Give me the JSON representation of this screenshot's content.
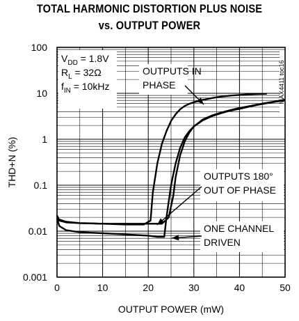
{
  "chart_data": {
    "type": "line",
    "title": "TOTAL HARMONIC DISTORTION PLUS NOISE",
    "subtitle": "vs. OUTPUT POWER",
    "xlabel": "OUTPUT POWER (mW)",
    "ylabel": "THD+N (%)",
    "xlim": [
      0,
      50
    ],
    "ylim": [
      0.001,
      100
    ],
    "yscale": "log",
    "grid": true,
    "x_ticks": [
      "0",
      "10",
      "20",
      "30",
      "40",
      "50"
    ],
    "y_ticks": [
      "0.001",
      "0.01",
      "0.1",
      "1",
      "10",
      "100"
    ],
    "conditions": [
      {
        "main": "V",
        "sub": "DD",
        "rest": " = 1.8V"
      },
      {
        "main": "R",
        "sub": "L",
        "rest": " = 32Ω"
      },
      {
        "main": "f",
        "sub": "IN",
        "rest": " = 10kHz"
      }
    ],
    "side_label": "MAX4411 toc16",
    "annotations": [
      {
        "lines": [
          "OUTPUTS IN",
          "PHASE"
        ]
      },
      {
        "lines": [
          "OUTPUTS 180°",
          "OUT OF PHASE"
        ]
      },
      {
        "lines": [
          "ONE CHANNEL",
          "DRIVEN"
        ]
      }
    ],
    "series": [
      {
        "x": [
          0,
          0.5,
          2,
          5,
          10,
          15,
          19,
          20.5,
          21,
          22,
          23,
          24,
          25,
          26,
          27,
          28,
          29,
          30,
          32,
          34,
          36,
          38,
          40,
          42,
          44,
          46
        ],
        "y": [
          0.02,
          0.018,
          0.016,
          0.015,
          0.0145,
          0.014,
          0.014,
          0.017,
          0.07,
          0.3,
          0.8,
          1.5,
          2.5,
          3.5,
          4.5,
          5.3,
          5.9,
          6.4,
          7.2,
          7.9,
          8.5,
          8.9,
          9.2,
          9.5,
          9.7,
          9.8
        ]
      },
      {
        "x": [
          0,
          0.5,
          2,
          5,
          10,
          15,
          20,
          23,
          24.5,
          25.5,
          26,
          27,
          28,
          29,
          30,
          32,
          34,
          36,
          38,
          40,
          42,
          44,
          46,
          48,
          50
        ],
        "y": [
          0.022,
          0.017,
          0.0155,
          0.015,
          0.0145,
          0.0145,
          0.0145,
          0.0145,
          0.02,
          0.06,
          0.15,
          0.45,
          0.9,
          1.4,
          1.9,
          2.7,
          3.3,
          3.8,
          4.3,
          4.8,
          5.2,
          5.7,
          6.2,
          6.7,
          7.3
        ]
      },
      {
        "x": [
          0,
          0.5,
          2,
          5,
          10,
          15,
          20,
          22,
          23.5,
          24,
          25,
          26,
          27,
          28,
          29,
          30,
          32,
          34,
          36,
          38,
          40,
          42,
          44,
          46,
          48,
          50
        ],
        "y": [
          0.019,
          0.013,
          0.0105,
          0.0095,
          0.009,
          0.0085,
          0.008,
          0.0075,
          0.0075,
          0.02,
          0.1,
          0.3,
          0.65,
          1.1,
          1.5,
          1.9,
          2.6,
          3.2,
          3.7,
          4.2,
          4.6,
          5.1,
          5.6,
          6.1,
          6.6,
          7.0
        ]
      }
    ]
  }
}
